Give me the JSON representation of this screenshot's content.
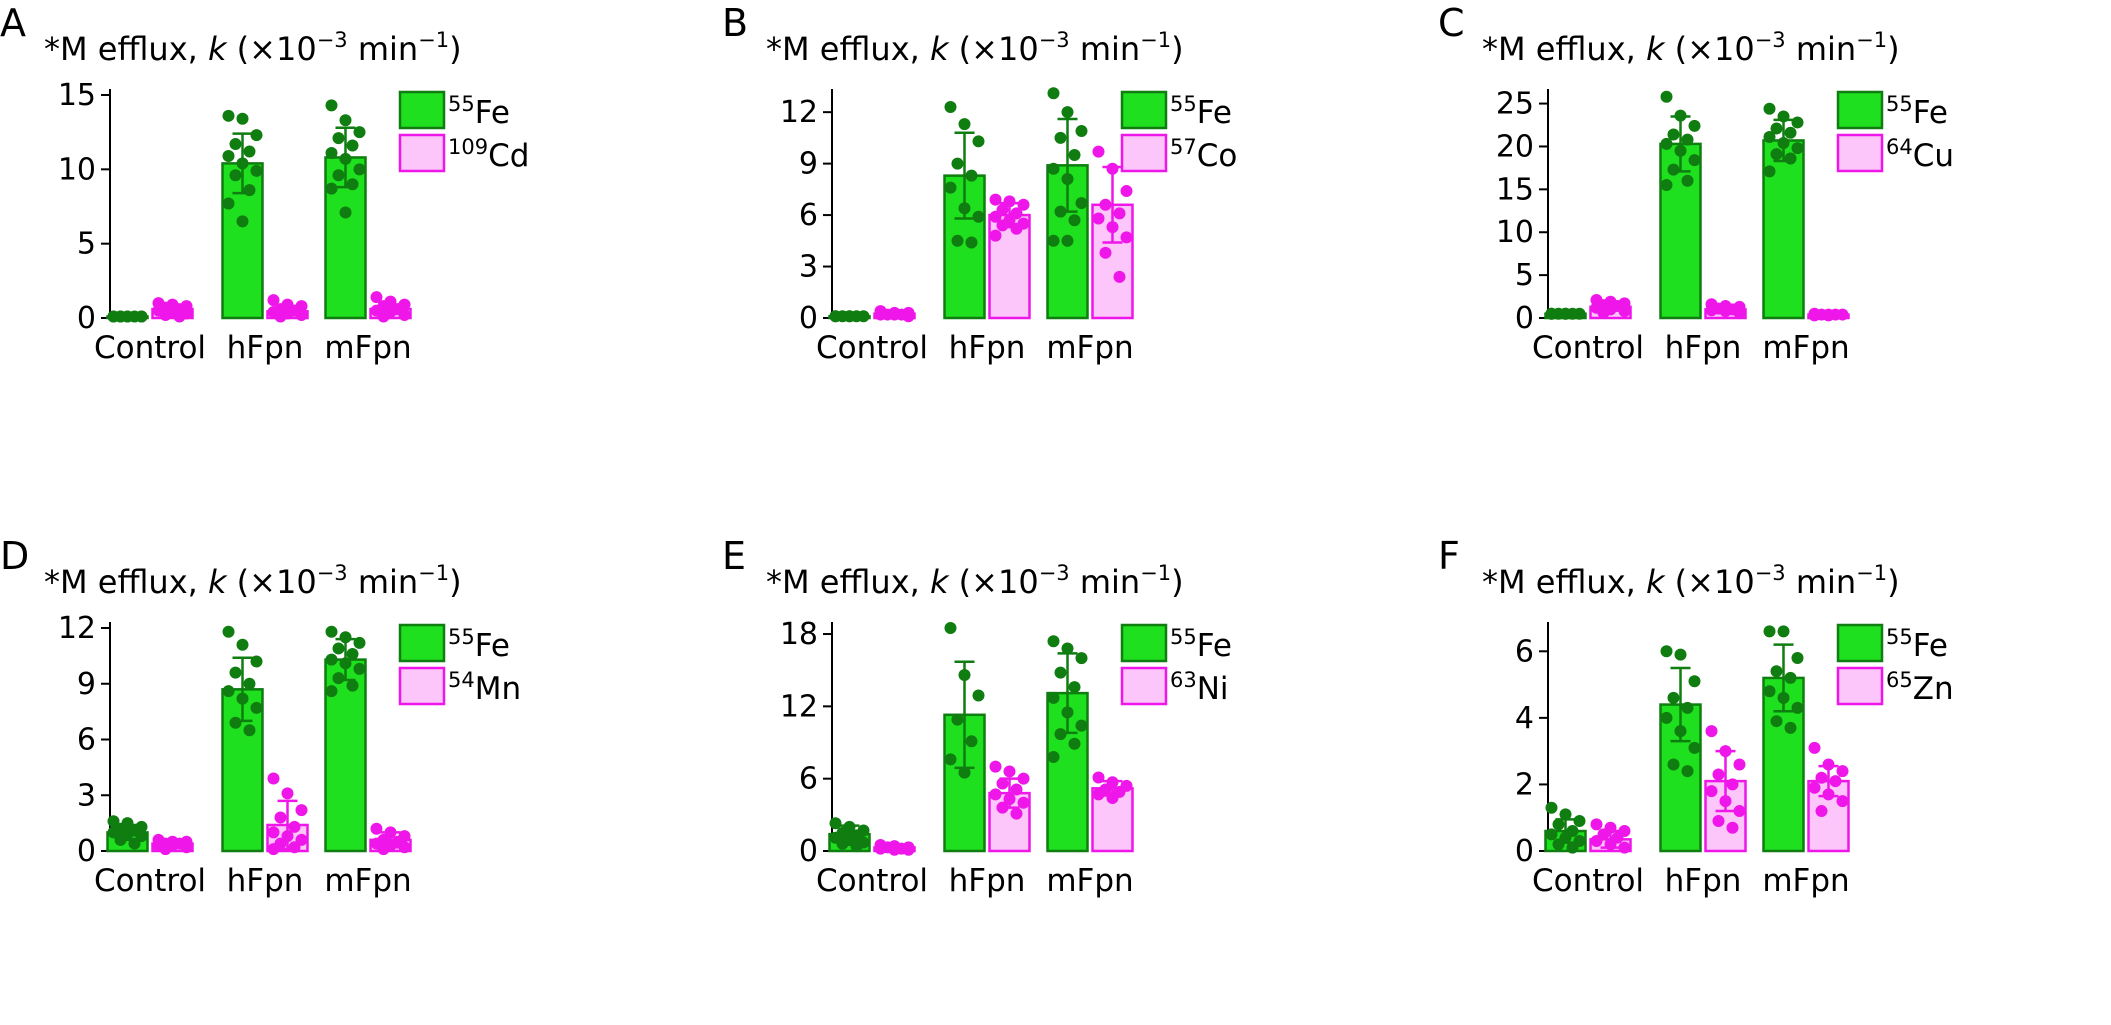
{
  "figure": {
    "colors": {
      "fe_fill": "#1ee01e",
      "fe_stroke": "#0f7d0f",
      "fe_dots": "#0f7d0f",
      "other_fill": "#fdc6fb",
      "other_stroke": "#ef16ea",
      "other_dots": "#ef16ea",
      "axis": "#000000"
    },
    "title_parts": {
      "prefix": "*M efflux, ",
      "k": "k",
      "mid": " (×10",
      "exp": "−3",
      "min": " min",
      "minexp": "−1",
      "close": ")"
    },
    "categories": [
      "Control",
      "hFpn",
      "mFpn"
    ]
  },
  "chart_data": [
    {
      "type": "bar",
      "panel": "A",
      "ylim": [
        0,
        15
      ],
      "yticks": [
        0,
        5,
        10,
        15
      ],
      "categories": [
        "Control",
        "hFpn",
        "mFpn"
      ],
      "series": [
        {
          "name": "Fe",
          "isotope": "55",
          "values": [
            0.1,
            10.4,
            10.8
          ],
          "err": [
            0.05,
            2.0,
            2.0
          ],
          "points": [
            [
              0.1,
              0.1,
              0.1,
              0.1,
              0.1,
              0.1,
              0.1,
              0.1,
              0.1
            ],
            [
              13.6,
              13.4,
              12.3,
              11.7,
              11.2,
              10.9,
              10.4,
              9.9,
              9.6,
              8.6,
              7.7,
              6.5
            ],
            [
              14.3,
              13.3,
              12.5,
              12.1,
              11.6,
              11.1,
              10.7,
              10.0,
              9.6,
              9.0,
              8.7,
              7.1
            ]
          ]
        },
        {
          "name": "Cd",
          "isotope": "109",
          "values": [
            0.6,
            0.45,
            0.6
          ],
          "err": [
            0.2,
            0.2,
            0.3
          ],
          "points": [
            [
              1.0,
              0.9,
              0.8,
              0.7,
              0.6,
              0.5,
              0.4,
              0.3,
              0.2,
              0.1
            ],
            [
              1.2,
              0.9,
              0.8,
              0.6,
              0.5,
              0.4,
              0.3,
              0.2,
              0.1
            ],
            [
              1.4,
              1.1,
              0.9,
              0.8,
              0.6,
              0.5,
              0.4,
              0.2,
              0.1
            ]
          ]
        }
      ]
    },
    {
      "type": "bar",
      "panel": "B",
      "ylim": [
        0,
        13
      ],
      "yticks": [
        0,
        3,
        6,
        9,
        12
      ],
      "categories": [
        "Control",
        "hFpn",
        "mFpn"
      ],
      "series": [
        {
          "name": "Fe",
          "isotope": "55",
          "values": [
            0.1,
            8.3,
            8.9
          ],
          "err": [
            0.05,
            2.5,
            2.7
          ],
          "points": [
            [
              0.1,
              0.1,
              0.1,
              0.1,
              0.1,
              0.1,
              0.1
            ],
            [
              12.3,
              11.3,
              10.3,
              9.0,
              8.3,
              7.6,
              6.4,
              5.9,
              4.5,
              4.4
            ],
            [
              13.1,
              12.0,
              10.9,
              10.5,
              9.5,
              8.7,
              8.1,
              6.7,
              6.2,
              5.7,
              4.5,
              4.5
            ]
          ]
        },
        {
          "name": "Co",
          "isotope": "57",
          "values": [
            0.25,
            6.0,
            6.6
          ],
          "err": [
            0.1,
            0.7,
            2.2
          ],
          "points": [
            [
              0.4,
              0.3,
              0.3,
              0.2,
              0.2,
              0.2,
              0.2,
              0.1
            ],
            [
              6.9,
              6.8,
              6.6,
              6.3,
              6.1,
              5.9,
              5.7,
              5.5,
              5.4,
              5.2,
              4.8
            ],
            [
              9.7,
              8.7,
              7.4,
              6.6,
              6.1,
              5.8,
              5.3,
              4.7,
              3.8,
              2.4
            ]
          ]
        }
      ]
    },
    {
      "type": "bar",
      "panel": "C",
      "ylim": [
        0,
        26
      ],
      "yticks": [
        0,
        5,
        10,
        15,
        20,
        25
      ],
      "categories": [
        "Control",
        "hFpn",
        "mFpn"
      ],
      "series": [
        {
          "name": "Fe",
          "isotope": "55",
          "values": [
            0.5,
            20.3,
            20.7
          ],
          "err": [
            0.1,
            3.2,
            2.4
          ],
          "points": [
            [
              0.5,
              0.5,
              0.5,
              0.5,
              0.5,
              0.5,
              0.5
            ],
            [
              25.8,
              23.6,
              22.4,
              21.4,
              20.8,
              20.3,
              19.5,
              18.4,
              17.3,
              16.0,
              15.5
            ],
            [
              24.4,
              23.5,
              22.8,
              22.1,
              21.6,
              21.1,
              20.4,
              19.8,
              19.1,
              18.6,
              17.1
            ]
          ]
        },
        {
          "name": "Cu",
          "isotope": "64",
          "values": [
            1.3,
            1.0,
            0.4
          ],
          "err": [
            0.4,
            0.4,
            0.1
          ],
          "points": [
            [
              2.1,
              1.9,
              1.7,
              1.5,
              1.4,
              1.2,
              1.0,
              0.8,
              0.6
            ],
            [
              1.6,
              1.4,
              1.3,
              1.1,
              1.0,
              0.9,
              0.8,
              0.6
            ],
            [
              0.5,
              0.4,
              0.4,
              0.4,
              0.4,
              0.3,
              0.3
            ]
          ]
        }
      ]
    },
    {
      "type": "bar",
      "panel": "D",
      "ylim": [
        0,
        12
      ],
      "yticks": [
        0,
        3,
        6,
        9,
        12
      ],
      "categories": [
        "Control",
        "hFpn",
        "mFpn"
      ],
      "series": [
        {
          "name": "Mn",
          "isotope": "54",
          "hidden_name": false,
          "values": [
            0,
            0,
            0
          ],
          "err": [
            0,
            0,
            0
          ],
          "points": [
            [],
            [],
            []
          ],
          "legend_only": true
        },
        {
          "name": "Fe",
          "isotope": "55",
          "values": [
            1.0,
            8.7,
            10.3
          ],
          "err": [
            0.4,
            1.7,
            1.1
          ],
          "points": [
            [
              1.6,
              1.5,
              1.3,
              1.2,
              1.1,
              1.0,
              0.9,
              0.8,
              0.6,
              0.4
            ],
            [
              11.8,
              11.1,
              10.2,
              9.6,
              9.0,
              8.6,
              8.2,
              7.7,
              6.9,
              6.5
            ],
            [
              11.8,
              11.5,
              11.2,
              10.9,
              10.6,
              10.3,
              10.1,
              9.8,
              9.3,
              8.9,
              8.6
            ]
          ]
        },
        {
          "name": "Mn",
          "isotope": "54",
          "values": [
            0.4,
            1.4,
            0.6
          ],
          "err": [
            0.1,
            1.3,
            0.4
          ],
          "points": [
            [
              0.6,
              0.5,
              0.5,
              0.4,
              0.4,
              0.3,
              0.3,
              0.2,
              0.1
            ],
            [
              3.9,
              3.1,
              2.2,
              1.8,
              1.3,
              1.0,
              0.8,
              0.6,
              0.4,
              0.2,
              0.1
            ],
            [
              1.2,
              1.0,
              0.8,
              0.6,
              0.5,
              0.4,
              0.3,
              0.2,
              0.1
            ]
          ]
        }
      ]
    },
    {
      "type": "bar",
      "panel": "E",
      "ylim": [
        0,
        18.5
      ],
      "yticks": [
        0,
        6,
        12,
        18
      ],
      "categories": [
        "Control",
        "hFpn",
        "mFpn"
      ],
      "series": [
        {
          "name": "Fe",
          "isotope": "55",
          "values": [
            1.4,
            11.3,
            13.1
          ],
          "err": [
            0.7,
            4.4,
            3.3
          ],
          "points": [
            [
              2.3,
              2.0,
              1.7,
              1.5,
              1.3,
              1.1,
              0.9,
              0.7,
              0.6,
              0.4
            ],
            [
              18.5,
              14.6,
              12.9,
              10.9,
              9.1,
              7.6,
              6.5
            ],
            [
              17.4,
              16.8,
              16.0,
              14.8,
              13.6,
              12.7,
              11.5,
              10.4,
              9.7,
              8.9,
              7.8
            ]
          ]
        },
        {
          "name": "Ni",
          "isotope": "63",
          "values": [
            0.3,
            4.8,
            5.2
          ],
          "err": [
            0.1,
            1.2,
            0.6
          ],
          "points": [
            [
              0.5,
              0.4,
              0.3,
              0.3,
              0.2,
              0.2,
              0.1,
              0.1
            ],
            [
              7.0,
              6.6,
              6.0,
              5.6,
              5.1,
              4.7,
              4.3,
              4.0,
              3.6,
              3.1
            ],
            [
              6.1,
              5.7,
              5.4,
              5.1,
              4.9,
              4.7,
              4.4
            ]
          ]
        }
      ]
    },
    {
      "type": "bar",
      "panel": "F",
      "ylim": [
        0,
        6.7
      ],
      "yticks": [
        0,
        2,
        4,
        6
      ],
      "categories": [
        "Control",
        "hFpn",
        "mFpn"
      ],
      "series": [
        {
          "name": "Fe",
          "isotope": "55",
          "values": [
            0.6,
            4.4,
            5.2
          ],
          "err": [
            0.35,
            1.1,
            1.0
          ],
          "points": [
            [
              1.3,
              1.1,
              0.9,
              0.8,
              0.6,
              0.5,
              0.4,
              0.3,
              0.2,
              0.1
            ],
            [
              6.0,
              5.9,
              5.1,
              4.6,
              4.3,
              4.0,
              3.6,
              3.1,
              2.6,
              2.4
            ],
            [
              6.6,
              6.6,
              5.8,
              5.4,
              5.2,
              4.8,
              4.6,
              4.3,
              3.9,
              3.7
            ]
          ]
        },
        {
          "name": "Zn",
          "isotope": "65",
          "values": [
            0.35,
            2.1,
            2.1
          ],
          "err": [
            0.25,
            0.9,
            0.45
          ],
          "points": [
            [
              0.8,
              0.7,
              0.6,
              0.5,
              0.4,
              0.3,
              0.2,
              0.1
            ],
            [
              3.6,
              3.0,
              2.6,
              2.3,
              2.0,
              1.8,
              1.5,
              1.2,
              0.9,
              0.7
            ],
            [
              3.1,
              2.6,
              2.4,
              2.2,
              2.1,
              1.9,
              1.7,
              1.5,
              1.2
            ]
          ]
        }
      ]
    }
  ]
}
